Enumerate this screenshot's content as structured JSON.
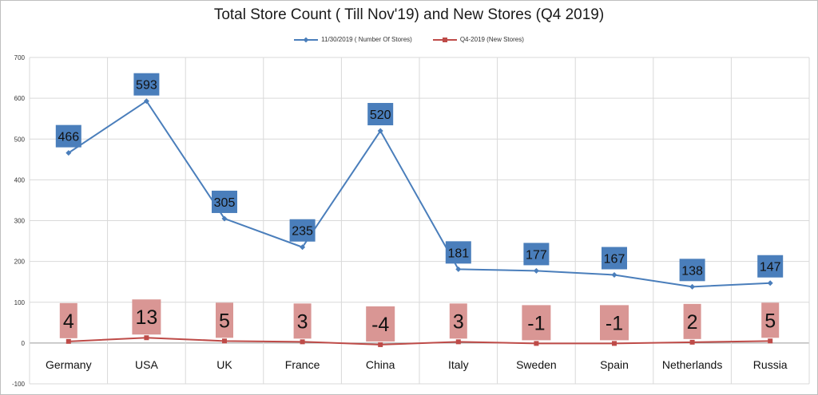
{
  "chart_data": {
    "type": "line",
    "title": "Total Store Count ( Till Nov'19) and New Stores (Q4 2019)",
    "xlabel": "",
    "ylabel": "",
    "ylim": [
      -100,
      700
    ],
    "yticks": [
      -100,
      0,
      100,
      200,
      300,
      400,
      500,
      600,
      700
    ],
    "grid": true,
    "legend_position": "top-center",
    "categories": [
      "Germany",
      "USA",
      "UK",
      "France",
      "China",
      "Italy",
      "Sweden",
      "Spain",
      "Netherlands",
      "Russia"
    ],
    "series": [
      {
        "name": "11/30/2019  ( Number Of Stores)",
        "color": "#4a7ebb",
        "label_bg": "#4a7ebb",
        "marker": "diamond",
        "values": [
          466,
          593,
          305,
          235,
          520,
          181,
          177,
          167,
          138,
          147
        ]
      },
      {
        "name": "Q4-2019  (New Stores)",
        "color": "#be4b48",
        "label_bg": "#d99694",
        "marker": "square",
        "values": [
          4,
          13,
          5,
          3,
          -4,
          3,
          -1,
          -1,
          2,
          5
        ]
      }
    ]
  }
}
